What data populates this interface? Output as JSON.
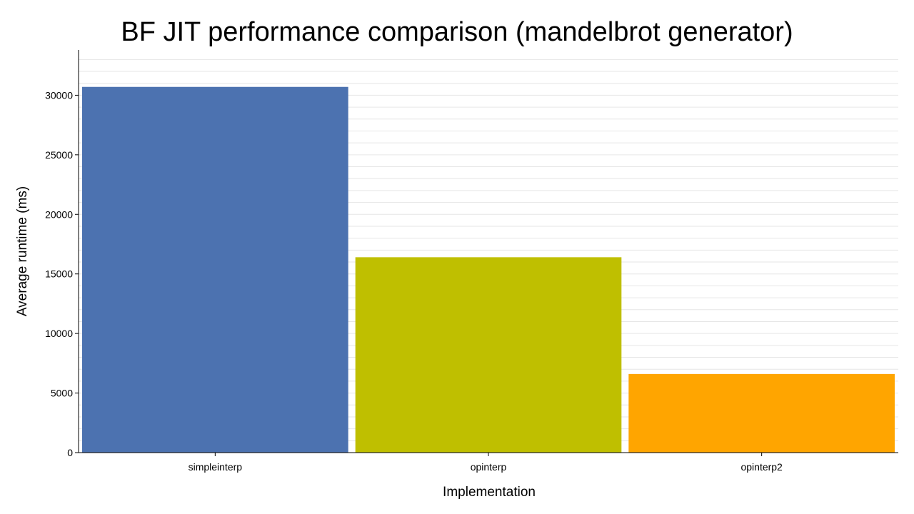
{
  "chart_data": {
    "type": "bar",
    "title": "BF JIT performance comparison (mandelbrot generator)",
    "xlabel": "Implementation",
    "ylabel": "Average runtime (ms)",
    "categories": [
      "simpleinterp",
      "opinterp",
      "opinterp2"
    ],
    "values": [
      30700,
      16400,
      6600
    ],
    "colors": [
      "#4c72b0",
      "#bfbf00",
      "#ffa500"
    ],
    "ylim": [
      0,
      33800
    ],
    "yticks": [
      0,
      5000,
      10000,
      15000,
      20000,
      25000,
      30000
    ],
    "grid": true,
    "legend": "none"
  }
}
